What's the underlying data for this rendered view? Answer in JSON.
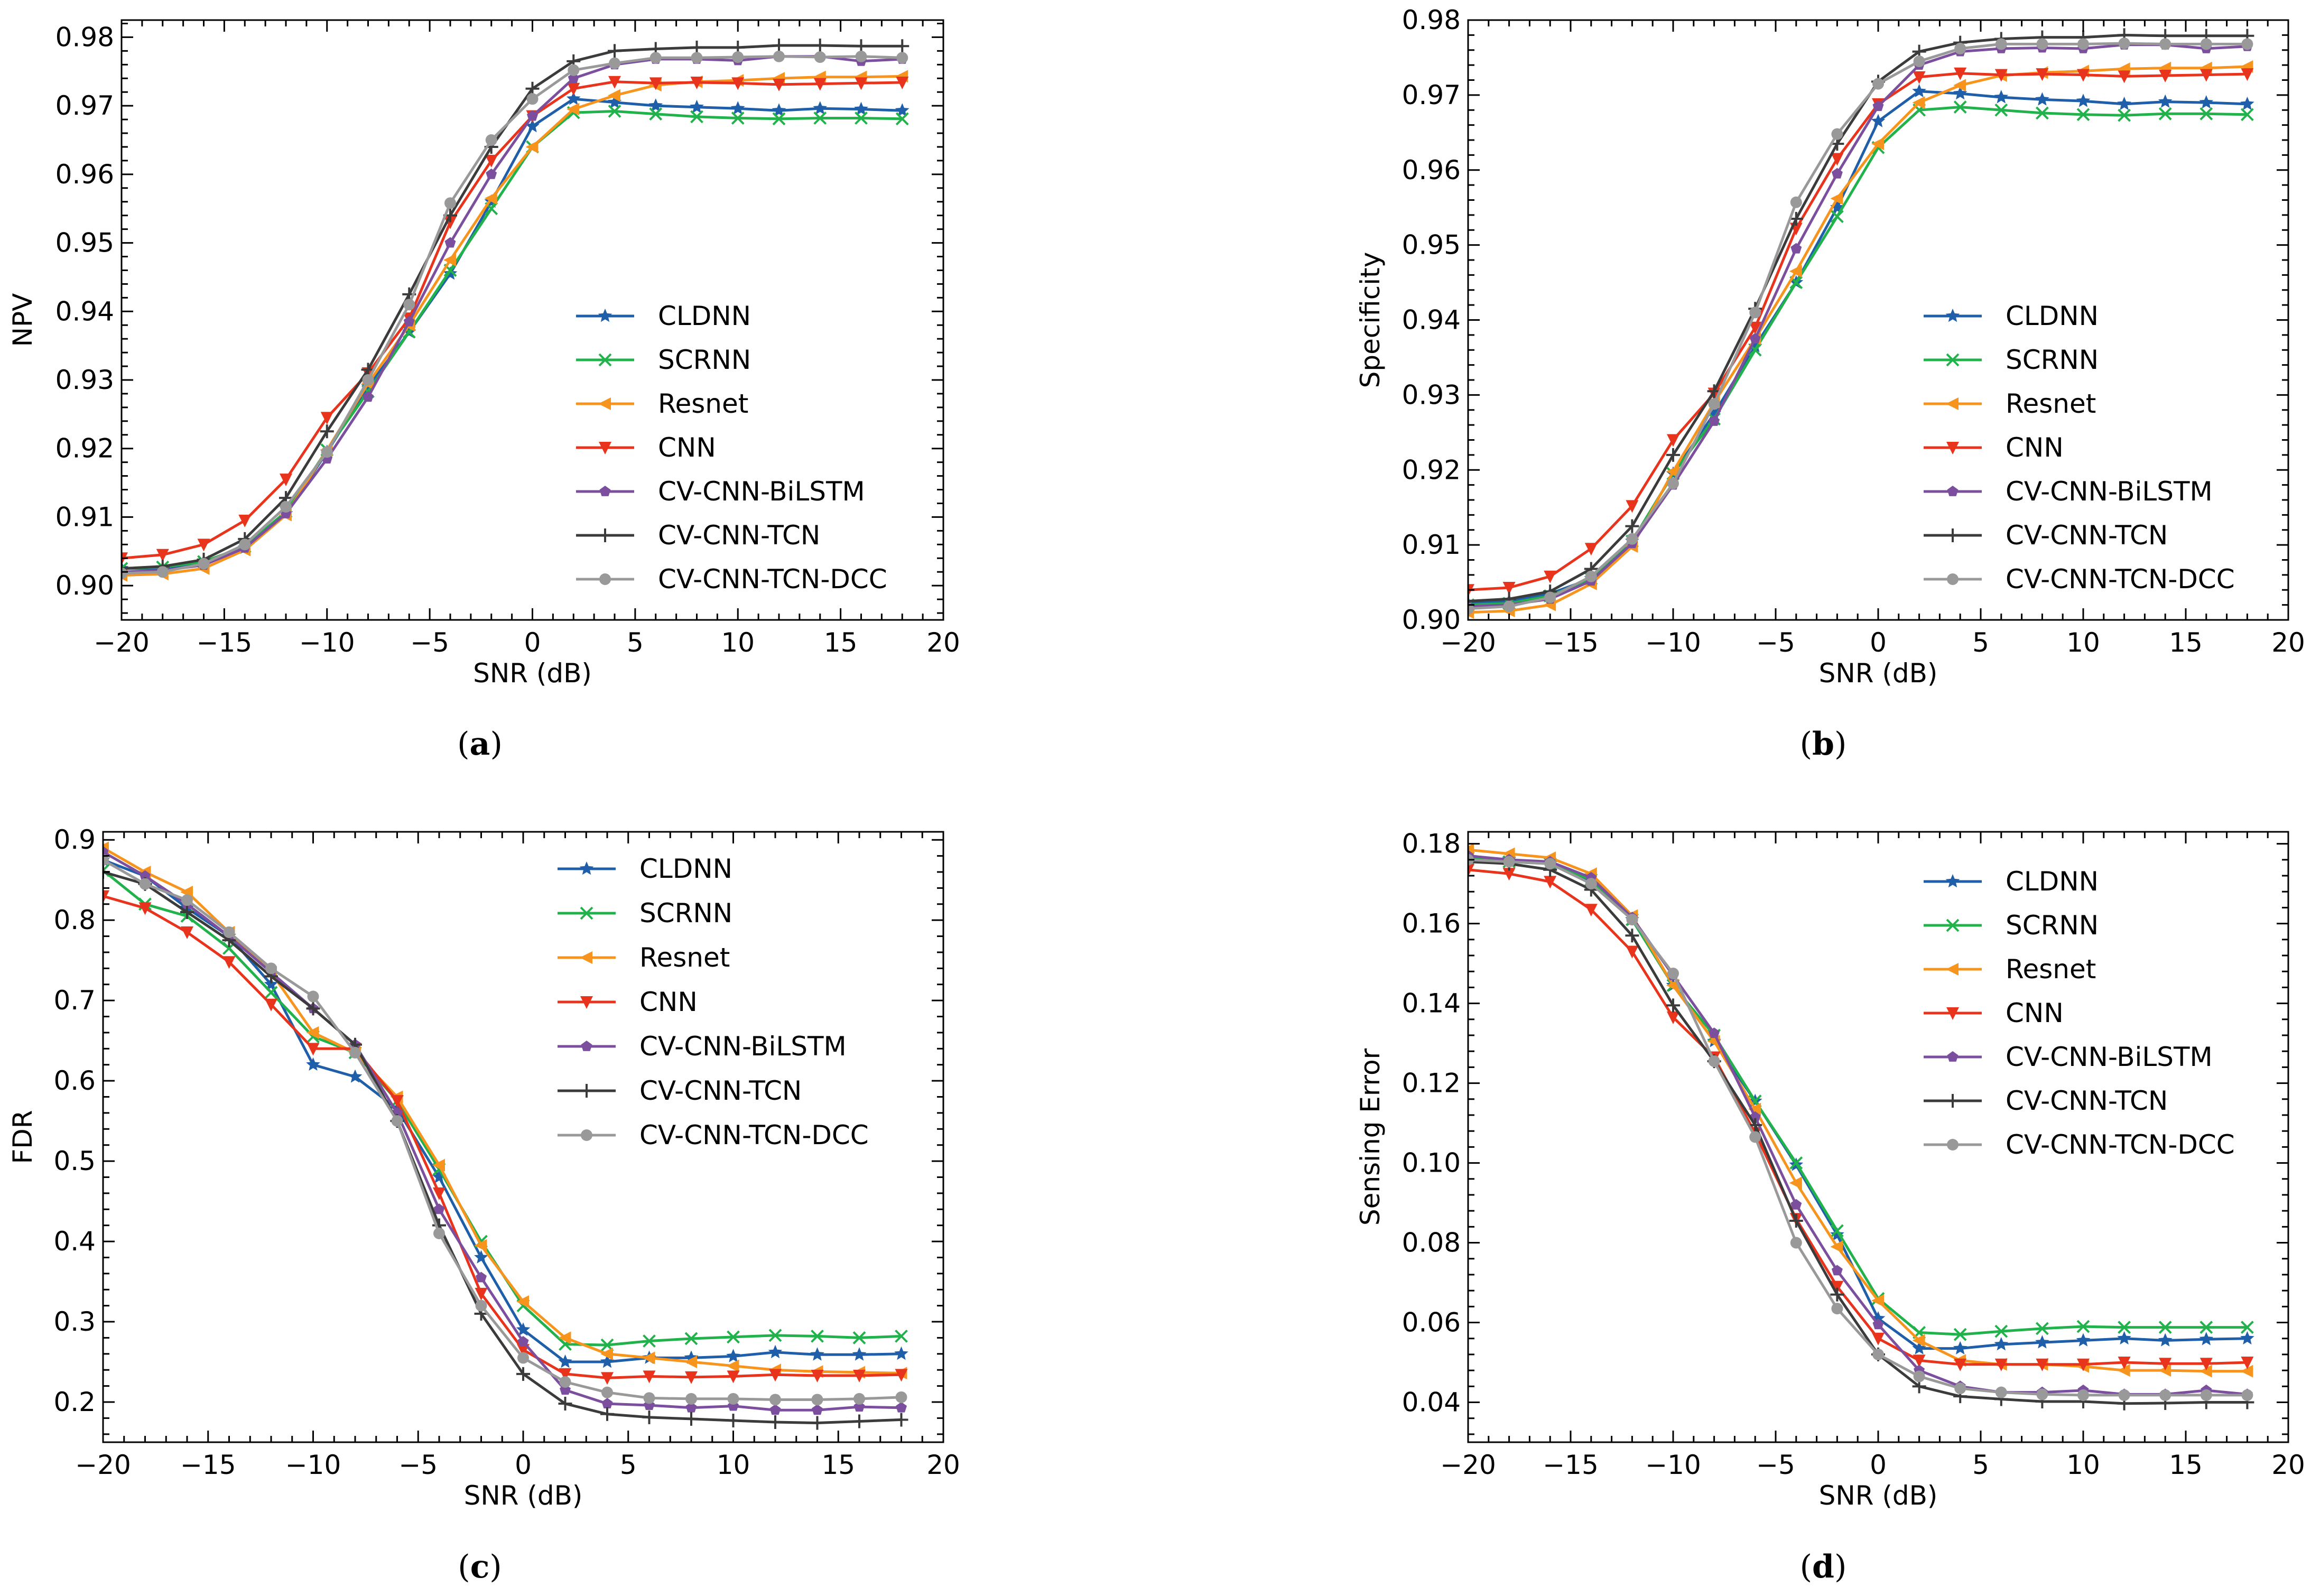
{
  "figure": {
    "xlabel": "SNR (dB)",
    "legend_entries": [
      "CLDNN",
      "SCRNN",
      "Resnet",
      "CNN",
      "CV-CNN-BiLSTM",
      "CV-CNN-TCN",
      "CV-CNN-TCN-DCC"
    ]
  },
  "panel_labels": {
    "a": {
      "open": "(",
      "letter": "a",
      "close": ")"
    },
    "b": {
      "open": "(",
      "letter": "b",
      "close": ")"
    },
    "c": {
      "open": "(",
      "letter": "c",
      "close": ")"
    },
    "d": {
      "open": "(",
      "letter": "d",
      "close": ")"
    }
  },
  "series_style": [
    {
      "name": "CLDNN",
      "color": "#1f5ea8",
      "marker": "star"
    },
    {
      "name": "SCRNN",
      "color": "#22b24c",
      "marker": "x"
    },
    {
      "name": "Resnet",
      "color": "#f7941d",
      "marker": "triangle-left"
    },
    {
      "name": "CNN",
      "color": "#e8341c",
      "marker": "triangle-down"
    },
    {
      "name": "CV-CNN-BiLSTM",
      "color": "#7b4f9e",
      "marker": "pentagon"
    },
    {
      "name": "CV-CNN-TCN",
      "color": "#3b3b3b",
      "marker": "plus"
    },
    {
      "name": "CV-CNN-TCN-DCC",
      "color": "#999999",
      "marker": "circle"
    }
  ],
  "chart_data": [
    {
      "id": "a",
      "type": "line",
      "title": "",
      "xlabel": "SNR (dB)",
      "ylabel": "NPV",
      "xlim": [
        -20,
        20
      ],
      "ylim": [
        0.895,
        0.9825
      ],
      "xticks": [
        -20,
        -15,
        -10,
        -5,
        0,
        5,
        10,
        15,
        20
      ],
      "yticks": [
        0.9,
        0.91,
        0.92,
        0.93,
        0.94,
        0.95,
        0.96,
        0.97,
        0.98
      ],
      "ytick_labels": [
        "0.90",
        "0.91",
        "0.92",
        "0.93",
        "0.94",
        "0.95",
        "0.96",
        "0.97",
        "0.98"
      ],
      "xtick_labels": [
        "−20",
        "−15",
        "−10",
        "−5",
        "0",
        "5",
        "10",
        "15",
        "20"
      ],
      "legend": "center-right",
      "x": [
        -20,
        -18,
        -16,
        -14,
        -12,
        -10,
        -8,
        -6,
        -4,
        -2,
        0,
        2,
        4,
        6,
        8,
        10,
        12,
        14,
        16,
        18
      ],
      "series": [
        {
          "name": "CLDNN",
          "values": [
            0.9025,
            0.9025,
            0.9035,
            0.9055,
            0.9105,
            0.9195,
            0.929,
            0.937,
            0.9455,
            0.956,
            0.967,
            0.971,
            0.9705,
            0.97,
            0.9698,
            0.9696,
            0.9693,
            0.9696,
            0.9695,
            0.9693
          ]
        },
        {
          "name": "SCRNN",
          "values": [
            0.9025,
            0.9027,
            0.9035,
            0.9057,
            0.9108,
            0.9198,
            0.9283,
            0.937,
            0.946,
            0.955,
            0.964,
            0.969,
            0.9692,
            0.9688,
            0.9684,
            0.9682,
            0.9681,
            0.9682,
            0.9682,
            0.9681
          ]
        },
        {
          "name": "Resnet",
          "values": [
            0.9015,
            0.9017,
            0.9025,
            0.9052,
            0.9103,
            0.9198,
            0.9295,
            0.938,
            0.9475,
            0.9565,
            0.964,
            0.9695,
            0.9715,
            0.973,
            0.9735,
            0.9737,
            0.974,
            0.9742,
            0.9742,
            0.9743
          ]
        },
        {
          "name": "CNN",
          "values": [
            0.904,
            0.9045,
            0.906,
            0.9095,
            0.9155,
            0.9245,
            0.931,
            0.939,
            0.953,
            0.962,
            0.9685,
            0.9725,
            0.9735,
            0.9733,
            0.9734,
            0.9733,
            0.9731,
            0.9732,
            0.9733,
            0.9734
          ]
        },
        {
          "name": "CV-CNN-BiLSTM",
          "values": [
            0.902,
            0.9022,
            0.903,
            0.9055,
            0.9105,
            0.9185,
            0.9275,
            0.9385,
            0.95,
            0.96,
            0.9685,
            0.974,
            0.976,
            0.9768,
            0.9768,
            0.9766,
            0.9772,
            0.9772,
            0.9765,
            0.9768
          ]
        },
        {
          "name": "CV-CNN-TCN",
          "values": [
            0.9025,
            0.9028,
            0.9038,
            0.9068,
            0.9128,
            0.9225,
            0.9315,
            0.9425,
            0.954,
            0.964,
            0.9725,
            0.9765,
            0.978,
            0.9783,
            0.9785,
            0.9785,
            0.9788,
            0.9788,
            0.9787,
            0.9787
          ]
        },
        {
          "name": "CV-CNN-TCN-DCC",
          "values": [
            0.9018,
            0.902,
            0.9032,
            0.906,
            0.9115,
            0.9195,
            0.93,
            0.941,
            0.9558,
            0.965,
            0.971,
            0.9752,
            0.9762,
            0.977,
            0.977,
            0.9771,
            0.9772,
            0.9771,
            0.9772,
            0.977
          ]
        }
      ]
    },
    {
      "id": "b",
      "type": "line",
      "title": "",
      "xlabel": "SNR (dB)",
      "ylabel": "Specificity",
      "xlim": [
        -20,
        20
      ],
      "ylim": [
        0.9,
        0.98
      ],
      "xticks": [
        -20,
        -15,
        -10,
        -5,
        0,
        5,
        10,
        15,
        20
      ],
      "yticks": [
        0.9,
        0.91,
        0.92,
        0.93,
        0.94,
        0.95,
        0.96,
        0.97,
        0.98
      ],
      "ytick_labels": [
        "0.90",
        "0.91",
        "0.92",
        "0.93",
        "0.94",
        "0.95",
        "0.96",
        "0.97",
        "0.98"
      ],
      "xtick_labels": [
        "−20",
        "−15",
        "−10",
        "−5",
        "0",
        "5",
        "10",
        "15",
        "20"
      ],
      "legend": "center-right",
      "x": [
        -20,
        -18,
        -16,
        -14,
        -12,
        -10,
        -8,
        -6,
        -4,
        -2,
        0,
        2,
        4,
        6,
        8,
        10,
        12,
        14,
        16,
        18
      ],
      "series": [
        {
          "name": "CLDNN",
          "values": [
            0.9022,
            0.9025,
            0.9035,
            0.9055,
            0.9105,
            0.9195,
            0.9275,
            0.9365,
            0.945,
            0.955,
            0.9665,
            0.9705,
            0.9702,
            0.9697,
            0.9694,
            0.9692,
            0.9688,
            0.9691,
            0.969,
            0.9688
          ]
        },
        {
          "name": "SCRNN",
          "values": [
            0.902,
            0.9022,
            0.9032,
            0.9055,
            0.9105,
            0.9195,
            0.9268,
            0.936,
            0.945,
            0.9538,
            0.963,
            0.968,
            0.9684,
            0.968,
            0.9676,
            0.9674,
            0.9673,
            0.9675,
            0.9675,
            0.9674
          ]
        },
        {
          "name": "Resnet",
          "values": [
            0.901,
            0.9012,
            0.902,
            0.9048,
            0.9098,
            0.9198,
            0.929,
            0.9375,
            0.9465,
            0.9562,
            0.9635,
            0.969,
            0.9713,
            0.9726,
            0.973,
            0.9732,
            0.9735,
            0.9736,
            0.9736,
            0.9738
          ]
        },
        {
          "name": "CNN",
          "values": [
            0.904,
            0.9043,
            0.9058,
            0.9095,
            0.9152,
            0.924,
            0.9302,
            0.939,
            0.9522,
            0.9615,
            0.9688,
            0.9724,
            0.9729,
            0.9727,
            0.9728,
            0.9727,
            0.9725,
            0.9726,
            0.9727,
            0.9728
          ]
        },
        {
          "name": "CV-CNN-BiLSTM",
          "values": [
            0.9018,
            0.902,
            0.9028,
            0.9052,
            0.9102,
            0.918,
            0.9265,
            0.9375,
            0.9495,
            0.9595,
            0.9685,
            0.974,
            0.9758,
            0.9762,
            0.9763,
            0.9762,
            0.9767,
            0.9767,
            0.9762,
            0.9765
          ]
        },
        {
          "name": "CV-CNN-TCN",
          "values": [
            0.9025,
            0.9028,
            0.9038,
            0.9068,
            0.9125,
            0.922,
            0.9305,
            0.9415,
            0.9535,
            0.9635,
            0.9718,
            0.9758,
            0.977,
            0.9775,
            0.9777,
            0.9777,
            0.978,
            0.9779,
            0.9779,
            0.9779
          ]
        },
        {
          "name": "CV-CNN-TCN-DCC",
          "values": [
            0.9015,
            0.9018,
            0.903,
            0.9058,
            0.9108,
            0.9182,
            0.9288,
            0.941,
            0.9557,
            0.9648,
            0.9715,
            0.9745,
            0.9762,
            0.9768,
            0.9768,
            0.9768,
            0.9769,
            0.9768,
            0.9768,
            0.9768
          ]
        }
      ]
    },
    {
      "id": "c",
      "type": "line",
      "title": "",
      "xlabel": "SNR (dB)",
      "ylabel": "FDR",
      "xlim": [
        -20,
        20
      ],
      "ylim": [
        0.15,
        0.91
      ],
      "xticks": [
        -20,
        -15,
        -10,
        -5,
        0,
        5,
        10,
        15,
        20
      ],
      "yticks": [
        0.2,
        0.3,
        0.4,
        0.5,
        0.6,
        0.7,
        0.8,
        0.9
      ],
      "ytick_labels": [
        "0.2",
        "0.3",
        "0.4",
        "0.5",
        "0.6",
        "0.7",
        "0.8",
        "0.9"
      ],
      "xtick_labels": [
        "−20",
        "−15",
        "−10",
        "−5",
        "0",
        "5",
        "10",
        "15",
        "20"
      ],
      "legend": "top-right",
      "x": [
        -20,
        -18,
        -16,
        -14,
        -12,
        -10,
        -8,
        -6,
        -4,
        -2,
        0,
        2,
        4,
        6,
        8,
        10,
        12,
        14,
        16,
        18
      ],
      "series": [
        {
          "name": "CLDNN",
          "values": [
            0.875,
            0.855,
            0.815,
            0.78,
            0.72,
            0.62,
            0.605,
            0.565,
            0.48,
            0.38,
            0.29,
            0.25,
            0.25,
            0.255,
            0.255,
            0.257,
            0.262,
            0.259,
            0.259,
            0.26
          ]
        },
        {
          "name": "SCRNN",
          "values": [
            0.862,
            0.82,
            0.805,
            0.765,
            0.71,
            0.655,
            0.635,
            0.575,
            0.49,
            0.4,
            0.32,
            0.272,
            0.271,
            0.276,
            0.279,
            0.281,
            0.283,
            0.282,
            0.28,
            0.282
          ]
        },
        {
          "name": "Resnet",
          "values": [
            0.89,
            0.86,
            0.835,
            0.785,
            0.735,
            0.66,
            0.635,
            0.58,
            0.495,
            0.395,
            0.325,
            0.28,
            0.26,
            0.255,
            0.25,
            0.245,
            0.24,
            0.238,
            0.237,
            0.236
          ]
        },
        {
          "name": "CNN",
          "values": [
            0.83,
            0.815,
            0.785,
            0.748,
            0.695,
            0.64,
            0.64,
            0.575,
            0.46,
            0.335,
            0.265,
            0.235,
            0.23,
            0.232,
            0.231,
            0.232,
            0.234,
            0.233,
            0.233,
            0.234
          ]
        },
        {
          "name": "CV-CNN-BiLSTM",
          "values": [
            0.885,
            0.855,
            0.82,
            0.78,
            0.735,
            0.69,
            0.645,
            0.56,
            0.44,
            0.355,
            0.275,
            0.215,
            0.198,
            0.196,
            0.193,
            0.195,
            0.19,
            0.19,
            0.194,
            0.193
          ]
        },
        {
          "name": "CV-CNN-TCN",
          "values": [
            0.86,
            0.845,
            0.81,
            0.775,
            0.73,
            0.69,
            0.645,
            0.55,
            0.42,
            0.31,
            0.235,
            0.198,
            0.185,
            0.181,
            0.179,
            0.177,
            0.175,
            0.174,
            0.176,
            0.178
          ]
        },
        {
          "name": "CV-CNN-TCN-DCC",
          "values": [
            0.875,
            0.845,
            0.825,
            0.785,
            0.74,
            0.705,
            0.635,
            0.55,
            0.41,
            0.32,
            0.255,
            0.225,
            0.212,
            0.205,
            0.204,
            0.204,
            0.203,
            0.203,
            0.204,
            0.206
          ]
        }
      ]
    },
    {
      "id": "d",
      "type": "line",
      "title": "",
      "xlabel": "SNR (dB)",
      "ylabel": "Sensing Error",
      "xlim": [
        -20,
        20
      ],
      "ylim": [
        0.03,
        0.183
      ],
      "xticks": [
        -20,
        -15,
        -10,
        -5,
        0,
        5,
        10,
        15,
        20
      ],
      "yticks": [
        0.04,
        0.06,
        0.08,
        0.1,
        0.12,
        0.14,
        0.16,
        0.18
      ],
      "ytick_labels": [
        "0.04",
        "0.06",
        "0.08",
        "0.10",
        "0.12",
        "0.14",
        "0.16",
        "0.18"
      ],
      "xtick_labels": [
        "−20",
        "−15",
        "−10",
        "−5",
        "0",
        "5",
        "10",
        "15",
        "20"
      ],
      "legend": "top-right",
      "x": [
        -20,
        -18,
        -16,
        -14,
        -12,
        -10,
        -8,
        -6,
        -4,
        -2,
        0,
        2,
        4,
        6,
        8,
        10,
        12,
        14,
        16,
        18
      ],
      "series": [
        {
          "name": "CLDNN",
          "values": [
            0.1765,
            0.176,
            0.175,
            0.1705,
            0.161,
            0.1445,
            0.1305,
            0.1155,
            0.0995,
            0.082,
            0.061,
            0.0535,
            0.0535,
            0.0545,
            0.055,
            0.0555,
            0.056,
            0.0555,
            0.0558,
            0.056
          ]
        },
        {
          "name": "SCRNN",
          "values": [
            0.1765,
            0.1755,
            0.175,
            0.171,
            0.161,
            0.1445,
            0.132,
            0.1155,
            0.1,
            0.083,
            0.066,
            0.0575,
            0.057,
            0.0578,
            0.0585,
            0.059,
            0.0588,
            0.0588,
            0.0588,
            0.0588
          ]
        },
        {
          "name": "Resnet",
          "values": [
            0.1785,
            0.1775,
            0.1765,
            0.1725,
            0.162,
            0.1445,
            0.1305,
            0.1135,
            0.095,
            0.079,
            0.0655,
            0.0555,
            0.0505,
            0.0495,
            0.0495,
            0.049,
            0.048,
            0.048,
            0.0478,
            0.0478
          ]
        },
        {
          "name": "CNN",
          "values": [
            0.1735,
            0.1725,
            0.1705,
            0.1635,
            0.153,
            0.1365,
            0.1265,
            0.1075,
            0.086,
            0.069,
            0.056,
            0.0505,
            0.0495,
            0.0495,
            0.0495,
            0.0495,
            0.05,
            0.0497,
            0.0497,
            0.05
          ]
        },
        {
          "name": "CV-CNN-BiLSTM",
          "values": [
            0.177,
            0.176,
            0.1755,
            0.1715,
            0.1615,
            0.147,
            0.1325,
            0.1115,
            0.0895,
            0.073,
            0.0595,
            0.048,
            0.044,
            0.0425,
            0.0425,
            0.043,
            0.042,
            0.042,
            0.043,
            0.042
          ]
        },
        {
          "name": "CV-CNN-TCN",
          "values": [
            0.1755,
            0.175,
            0.1735,
            0.1685,
            0.157,
            0.1395,
            0.1255,
            0.1095,
            0.0855,
            0.067,
            0.052,
            0.044,
            0.0415,
            0.0408,
            0.0402,
            0.0402,
            0.0397,
            0.0398,
            0.04,
            0.04
          ]
        },
        {
          "name": "CV-CNN-TCN-DCC",
          "values": [
            0.176,
            0.1755,
            0.175,
            0.17,
            0.161,
            0.1475,
            0.1255,
            0.1065,
            0.08,
            0.0635,
            0.052,
            0.0465,
            0.0435,
            0.0425,
            0.042,
            0.0418,
            0.0418,
            0.0418,
            0.0418,
            0.0418
          ]
        }
      ]
    }
  ]
}
